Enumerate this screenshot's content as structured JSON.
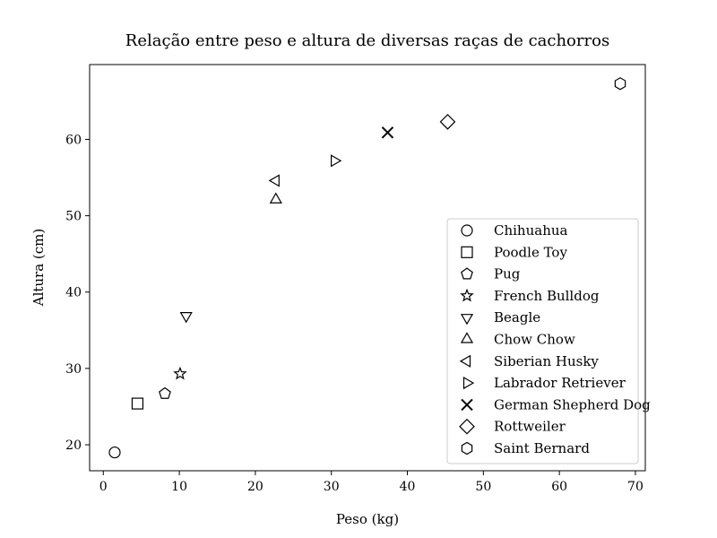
{
  "chart_data": {
    "type": "scatter",
    "title": "Relação entre peso e altura de diversas raças de cachorros",
    "xlabel": "Peso (kg)",
    "ylabel": "Altura (cm)",
    "xlim": [
      -1.8,
      71.3
    ],
    "ylim": [
      16.6,
      69.8
    ],
    "xticks": [
      0,
      10,
      20,
      30,
      40,
      50,
      60,
      70
    ],
    "yticks": [
      20,
      30,
      40,
      50,
      60
    ],
    "grid": false,
    "legend_position": "lower-right",
    "marker_color": "#000000",
    "series": [
      {
        "name": "Chihuahua",
        "marker": "circle",
        "x": [
          1.5
        ],
        "y": [
          19.0
        ]
      },
      {
        "name": "Poodle Toy",
        "marker": "square",
        "x": [
          4.5
        ],
        "y": [
          25.4
        ]
      },
      {
        "name": "Pug",
        "marker": "pentagon",
        "x": [
          8.1
        ],
        "y": [
          26.7
        ]
      },
      {
        "name": "French Bulldog",
        "marker": "star",
        "x": [
          10.1
        ],
        "y": [
          29.3
        ]
      },
      {
        "name": "Beagle",
        "marker": "triangle-down",
        "x": [
          10.9
        ],
        "y": [
          36.9
        ]
      },
      {
        "name": "Chow Chow",
        "marker": "triangle-up",
        "x": [
          22.7
        ],
        "y": [
          52.1
        ]
      },
      {
        "name": "Siberian Husky",
        "marker": "triangle-left",
        "x": [
          22.7
        ],
        "y": [
          54.6
        ]
      },
      {
        "name": "Labrador Retriever",
        "marker": "triangle-right",
        "x": [
          30.4
        ],
        "y": [
          57.2
        ]
      },
      {
        "name": "German Shepherd Dog",
        "marker": "x",
        "x": [
          37.4
        ],
        "y": [
          60.9
        ]
      },
      {
        "name": "Rottweiler",
        "marker": "diamond",
        "x": [
          45.3
        ],
        "y": [
          62.3
        ]
      },
      {
        "name": "Saint Bernard",
        "marker": "hexagon",
        "x": [
          68.0
        ],
        "y": [
          67.3
        ]
      }
    ]
  }
}
